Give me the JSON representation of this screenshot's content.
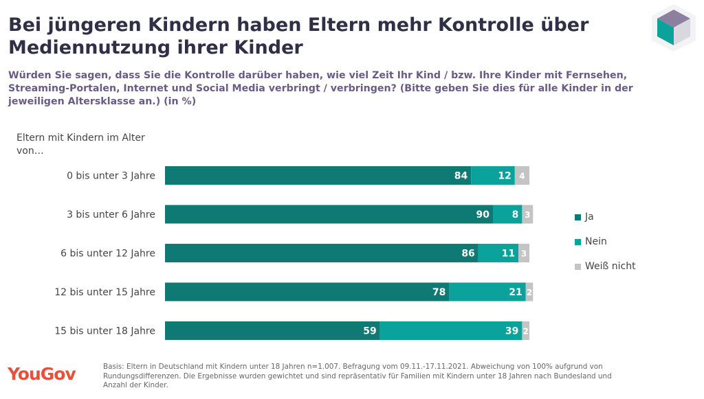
{
  "title": "Bei jüngeren Kindern haben Eltern mehr Kontrolle über Mediennutzung ihrer Kinder",
  "subtitle": "Würden Sie sagen, dass Sie die Kontrolle darüber haben, wie viel Zeit Ihr Kind / bzw. Ihre Kinder mit Fernsehen, Streaming-Portalen, Internet und Social Media verbringt / verbringen?  (Bitte geben Sie dies für alle Kinder in der jeweiligen Altersklasse an.) (in %)",
  "footnote": "Basis: Eltern in Deutschland mit Kindern unter 18 Jahren n=1.007. Befragung vom 09.11.-17.11.2021. Abweichung von 100% aufgrund von Rundungsdifferenzen. Die Ergebnisse wurden gewichtet und sind repräsentativ für Familien mit Kindern unter 18 Jahren nach Bundesland und Anzahl der Kinder.",
  "logo_text": "YouGov",
  "chart_data": {
    "type": "bar",
    "orientation": "horizontal",
    "stacked": true,
    "category_axis_title": "Eltern mit Kindern im Alter von…",
    "categories": [
      "0 bis unter 3 Jahre",
      "3 bis unter 6 Jahre",
      "6 bis unter 12 Jahre",
      "12 bis unter 15 Jahre",
      "15 bis unter 18 Jahre"
    ],
    "series": [
      {
        "name": "Ja",
        "color": "#0f7a73",
        "values": [
          84,
          90,
          86,
          78,
          59
        ]
      },
      {
        "name": "Nein",
        "color": "#0aa29a",
        "values": [
          12,
          8,
          11,
          21,
          39
        ]
      },
      {
        "name": "Weiß nicht",
        "color": "#c4c4c4",
        "values": [
          4,
          3,
          3,
          2,
          2
        ]
      }
    ],
    "xlim": [
      0,
      100
    ],
    "legend_position": "right",
    "grid": false
  }
}
